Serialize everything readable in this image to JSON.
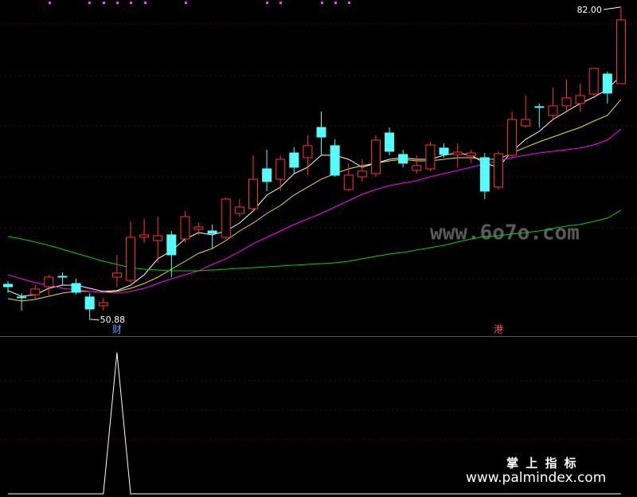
{
  "chart_data": {
    "type": "candlestick",
    "open": [
      54.43,
      53.17,
      53.4,
      54.19,
      55.22,
      54.51,
      53.17,
      52.3,
      55.14,
      54.82,
      59.09,
      58.77,
      59.33,
      58.93,
      59.88,
      59.72,
      59.09,
      61.46,
      61.93,
      65.88,
      64.85,
      67.46,
      66.99,
      69.99,
      68.18,
      63.83,
      65.09,
      65.41,
      69.44,
      67.31,
      65.73,
      65.88,
      67.94,
      67.31,
      67.15,
      66.99,
      64.07,
      67.23,
      70.15,
      72.05,
      71.18,
      72.13,
      72.36,
      73.31,
      75.29,
      74.34
    ],
    "high": [
      54.75,
      53.56,
      54.35,
      55.38,
      55.61,
      54.98,
      53.56,
      53.09,
      57.35,
      60.67,
      60.91,
      61.14,
      59.72,
      61.7,
      60.51,
      60.35,
      63.04,
      62.88,
      67.23,
      67.78,
      67.23,
      68.02,
      69.2,
      71.57,
      68.81,
      66.44,
      66.83,
      69.2,
      69.99,
      67.78,
      67.23,
      68.57,
      68.41,
      68.41,
      67.78,
      67.46,
      67.62,
      71.57,
      73.15,
      72.36,
      73.94,
      74.73,
      74.34,
      75.84,
      75.52,
      82.0
    ],
    "low": [
      53.56,
      51.82,
      53.01,
      53.24,
      54.35,
      53.4,
      50.88,
      51.82,
      54.19,
      54.59,
      58.54,
      56.56,
      55.14,
      58.54,
      59.33,
      57.98,
      58.93,
      61.14,
      61.7,
      63.67,
      63.67,
      65.41,
      65.25,
      67.23,
      65.09,
      63.67,
      64.62,
      65.09,
      67.23,
      66.04,
      65.41,
      65.65,
      66.99,
      66.04,
      66.44,
      62.88,
      63.83,
      66.99,
      69.99,
      69.99,
      70.78,
      71.57,
      71.57,
      73.15,
      72.36,
      74.34
    ],
    "close": [
      54.19,
      53.09,
      53.96,
      55.14,
      55.14,
      53.64,
      51.98,
      52.61,
      55.54,
      59.09,
      59.33,
      59.25,
      57.35,
      61.14,
      60.12,
      59.49,
      62.88,
      62.09,
      64.85,
      64.62,
      66.83,
      66.04,
      68.18,
      69.04,
      65.25,
      65.25,
      65.65,
      68.73,
      67.62,
      66.44,
      66.2,
      68.25,
      67.31,
      67.54,
      67.46,
      63.67,
      67.38,
      70.78,
      70.78,
      71.97,
      72.13,
      72.92,
      73.15,
      75.84,
      73.39,
      80.66
    ],
    "up_color": "#ff3232",
    "down_color": "#54fcfc",
    "ylim": [
      49.29,
      82.63
    ],
    "moving_averages": [
      {
        "color": "#ffffff",
        "values": [
          53.8,
          53.24,
          53.4,
          54.03,
          54.35,
          54.35,
          54.03,
          53.72,
          53.8,
          54.35,
          55.37,
          56.96,
          57.75,
          58.93,
          59.56,
          59.33,
          59.72,
          60.51,
          61.7,
          63.27,
          64.07,
          65.41,
          66.04,
          67.23,
          67.23,
          66.83,
          66.04,
          66.44,
          66.83,
          66.99,
          66.83,
          66.83,
          67.23,
          67.46,
          67.23,
          66.44,
          66.04,
          67.62,
          68.81,
          69.6,
          70.78,
          71.57,
          72.36,
          72.99,
          73.78,
          75.13
        ]
      },
      {
        "color": "#e8e800",
        "values": [
          53.01,
          52.77,
          52.93,
          53.24,
          53.56,
          53.72,
          53.72,
          53.64,
          53.72,
          54.03,
          54.51,
          55.14,
          55.93,
          56.72,
          57.51,
          57.98,
          58.77,
          59.72,
          60.51,
          61.46,
          62.25,
          63.28,
          64.07,
          64.86,
          65.41,
          65.88,
          66.2,
          66.44,
          66.67,
          66.83,
          66.67,
          66.67,
          66.83,
          66.99,
          66.99,
          66.83,
          66.83,
          67.46,
          68.02,
          68.57,
          69.04,
          69.52,
          69.99,
          70.62,
          71.18,
          72.76
        ]
      },
      {
        "color": "#ff00ff",
        "values": [
          55.37,
          54.98,
          54.59,
          54.35,
          54.03,
          53.88,
          53.72,
          53.64,
          53.56,
          53.72,
          54.03,
          54.51,
          54.98,
          55.37,
          55.77,
          56.4,
          56.96,
          57.67,
          58.46,
          59.09,
          59.72,
          60.35,
          60.91,
          61.46,
          62.09,
          62.72,
          63.36,
          63.83,
          64.22,
          64.46,
          64.7,
          65.09,
          65.41,
          65.72,
          66.04,
          66.36,
          66.67,
          66.99,
          67.23,
          67.46,
          67.62,
          67.78,
          67.94,
          68.25,
          68.73,
          69.83
        ]
      },
      {
        "color": "#00d200",
        "values": [
          59.17,
          58.93,
          58.62,
          58.3,
          57.9,
          57.51,
          57.11,
          56.72,
          56.4,
          56.08,
          55.93,
          55.85,
          55.77,
          55.77,
          55.77,
          55.85,
          55.93,
          56.01,
          56.08,
          56.16,
          56.24,
          56.32,
          56.4,
          56.48,
          56.56,
          56.72,
          56.96,
          57.2,
          57.43,
          57.59,
          57.83,
          58.06,
          58.3,
          58.62,
          58.93,
          59.17,
          59.25,
          59.41,
          59.56,
          59.72,
          59.96,
          60.2,
          60.36,
          60.67,
          60.99,
          61.78
        ]
      }
    ],
    "annotations": [
      {
        "text": "82.00"
      },
      {
        "text": "50.88"
      }
    ],
    "event_labels": [
      null,
      null,
      null,
      null,
      null,
      null,
      null,
      null,
      "财",
      null,
      null,
      null,
      null,
      null,
      null,
      null,
      null,
      null,
      null,
      null,
      null,
      null,
      null,
      null,
      null,
      null,
      null,
      null,
      null,
      null,
      null,
      null,
      null,
      null,
      null,
      null,
      "港",
      null,
      null,
      null,
      null,
      null,
      null,
      null,
      null,
      null
    ],
    "event_colors": [
      null,
      null,
      null,
      null,
      null,
      null,
      null,
      null,
      "#5aa0ff",
      null,
      null,
      null,
      null,
      null,
      null,
      null,
      null,
      null,
      null,
      null,
      null,
      null,
      null,
      null,
      null,
      null,
      null,
      null,
      null,
      null,
      null,
      null,
      null,
      null,
      null,
      null,
      "#ff5050",
      null,
      null,
      null,
      null,
      null,
      null,
      null,
      null,
      null
    ],
    "indicator": {
      "color": "#ffffff",
      "ylim": [
        0,
        1.1
      ],
      "values": [
        0,
        0,
        0,
        0,
        0,
        0,
        0,
        0,
        1,
        0,
        0,
        0,
        0,
        0,
        0,
        0,
        0,
        0,
        0,
        0,
        0,
        0,
        0,
        0,
        0,
        0,
        0,
        0,
        0,
        0,
        0,
        0,
        0,
        0,
        0,
        0,
        0,
        0,
        0,
        0,
        0,
        0,
        0,
        0,
        0,
        0
      ]
    }
  },
  "watermarks": {
    "site": "www.6o7o.com",
    "brand": "掌 上 指 标",
    "url": "www.palmindex.com"
  }
}
